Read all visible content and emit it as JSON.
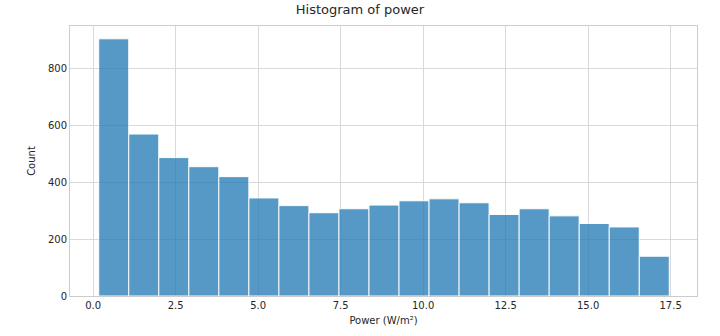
{
  "chart_data": {
    "type": "histogram",
    "title": "Histogram of power",
    "x_label": "Power (W/m²)",
    "y_label": "Count",
    "bins": [
      0.17,
      1.08,
      1.99,
      2.9,
      3.81,
      4.72,
      5.63,
      6.54,
      7.45,
      8.36,
      9.27,
      10.18,
      11.09,
      12.0,
      12.91,
      13.82,
      14.73,
      15.64,
      16.55,
      17.46
    ],
    "values": [
      905,
      570,
      487,
      455,
      420,
      345,
      318,
      293,
      307,
      320,
      335,
      342,
      328,
      287,
      307,
      282,
      255,
      243,
      140
    ],
    "color": "#1f77b4",
    "xlim": [
      -0.7,
      18.3
    ],
    "xticks": [
      {
        "value": 0,
        "label": "0.0"
      },
      {
        "value": 2.5,
        "label": "2.5"
      },
      {
        "value": 5,
        "label": "5.0"
      },
      {
        "value": 7.5,
        "label": "7.5"
      },
      {
        "value": 10,
        "label": "10.0"
      },
      {
        "value": 12.5,
        "label": "12.5"
      },
      {
        "value": 15,
        "label": "15.0"
      },
      {
        "value": 17.5,
        "label": "17.5"
      }
    ],
    "ylim": [
      0,
      950
    ],
    "yticks": [
      0,
      200,
      400,
      600,
      800
    ],
    "grid": true
  }
}
